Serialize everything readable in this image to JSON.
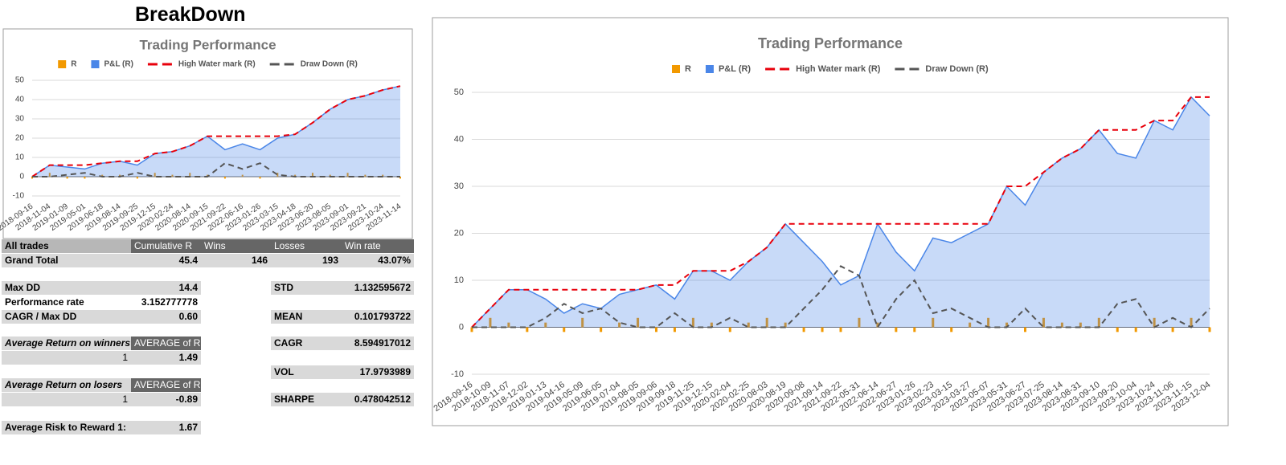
{
  "header": {
    "title": "BreakDown"
  },
  "chart_data": [
    {
      "type": "line",
      "title": "Trading Performance",
      "categories": [
        "2018-09-16",
        "2018-11-04",
        "2019-01-09",
        "2019-05-01",
        "2019-06-18",
        "2019-08-14",
        "2019-09-25",
        "2019-12-15",
        "2020-02-24",
        "2020-08-14",
        "2020-09-15",
        "2021-09-22",
        "2022-06-16",
        "2023-01-26",
        "2023-03-15",
        "2023-04-18",
        "2023-06-20",
        "2023-08-05",
        "2023-09-01",
        "2023-09-21",
        "2023-10-24",
        "2023-11-14"
      ],
      "series": [
        {
          "name": "R",
          "kind": "bar",
          "color": "#f29900",
          "values": [
            -1,
            2,
            -1,
            -1,
            1,
            1,
            -1,
            2,
            1,
            2,
            1,
            -1,
            1,
            -1,
            2,
            1,
            2,
            1,
            2,
            1,
            1,
            -1
          ]
        },
        {
          "name": "P&L (R)",
          "kind": "area",
          "color": "#4a86e8",
          "values": [
            0,
            6,
            5,
            4,
            7,
            8,
            6,
            12,
            13,
            16,
            21,
            14,
            17,
            14,
            20,
            22,
            28,
            35,
            40,
            42,
            45,
            47
          ]
        },
        {
          "name": "High Water mark (R)",
          "kind": "line",
          "dashed": true,
          "color": "#e8000b",
          "values": [
            0,
            6,
            6,
            6,
            7,
            8,
            8,
            12,
            13,
            16,
            21,
            21,
            21,
            21,
            21,
            22,
            28,
            35,
            40,
            42,
            45,
            47
          ]
        },
        {
          "name": "Draw Down (R)",
          "kind": "line",
          "dashed": true,
          "color": "#555555",
          "values": [
            0,
            0,
            1,
            2,
            0,
            0,
            2,
            0,
            0,
            0,
            0,
            7,
            4,
            7,
            1,
            0,
            0,
            0,
            0,
            0,
            0,
            0
          ]
        }
      ],
      "ylim": [
        -10,
        50
      ],
      "yticks": [
        -10,
        0,
        10,
        20,
        30,
        40,
        50
      ],
      "grid": true,
      "legend": "top"
    },
    {
      "type": "line",
      "title": "Trading Performance",
      "categories": [
        "2018-09-16",
        "2018-10-09",
        "2018-11-07",
        "2018-12-02",
        "2019-01-13",
        "2019-04-16",
        "2019-05-09",
        "2019-06-05",
        "2019-07-04",
        "2019-08-05",
        "2019-09-06",
        "2019-09-18",
        "2019-11-25",
        "2019-12-15",
        "2020-02-04",
        "2020-02-25",
        "2020-08-03",
        "2020-08-19",
        "2020-09-08",
        "2021-09-14",
        "2021-09-22",
        "2022-05-31",
        "2022-06-14",
        "2022-06-27",
        "2023-01-26",
        "2023-02-23",
        "2023-03-15",
        "2023-03-27",
        "2023-05-07",
        "2023-05-31",
        "2023-06-27",
        "2023-07-25",
        "2023-08-14",
        "2023-08-31",
        "2023-09-10",
        "2023-09-20",
        "2023-10-04",
        "2023-10-24",
        "2023-11-06",
        "2023-11-15",
        "2023-12-04"
      ],
      "series": [
        {
          "name": "R",
          "kind": "bar",
          "color": "#f29900",
          "values": [
            -1,
            2,
            1,
            -1,
            1,
            -1,
            2,
            -1,
            1,
            2,
            -1,
            -1,
            2,
            1,
            -1,
            1,
            2,
            1,
            -1,
            -1,
            -1,
            2,
            1,
            -1,
            -1,
            2,
            -1,
            1,
            2,
            1,
            -1,
            2,
            1,
            1,
            2,
            -1,
            -1,
            2,
            -1,
            2,
            -1
          ]
        },
        {
          "name": "P&L (R)",
          "kind": "area",
          "color": "#4a86e8",
          "values": [
            0,
            4,
            8,
            8,
            6,
            3,
            5,
            4,
            7,
            8,
            9,
            6,
            12,
            12,
            10,
            14,
            17,
            22,
            18,
            14,
            9,
            11,
            22,
            16,
            12,
            19,
            18,
            20,
            22,
            30,
            26,
            33,
            36,
            38,
            42,
            37,
            36,
            44,
            42,
            49,
            45
          ]
        },
        {
          "name": "High Water mark (R)",
          "kind": "line",
          "dashed": true,
          "color": "#e8000b",
          "values": [
            0,
            4,
            8,
            8,
            8,
            8,
            8,
            8,
            8,
            8,
            9,
            9,
            12,
            12,
            12,
            14,
            17,
            22,
            22,
            22,
            22,
            22,
            22,
            22,
            22,
            22,
            22,
            22,
            22,
            30,
            30,
            33,
            36,
            38,
            42,
            42,
            42,
            44,
            44,
            49,
            49
          ]
        },
        {
          "name": "Draw Down (R)",
          "kind": "line",
          "dashed": true,
          "color": "#555555",
          "values": [
            0,
            0,
            0,
            0,
            2,
            5,
            3,
            4,
            1,
            0,
            0,
            3,
            0,
            0,
            2,
            0,
            0,
            0,
            4,
            8,
            13,
            11,
            0,
            6,
            10,
            3,
            4,
            2,
            0,
            0,
            4,
            0,
            0,
            0,
            0,
            5,
            6,
            0,
            2,
            0,
            4
          ]
        }
      ],
      "ylim": [
        -10,
        50
      ],
      "yticks": [
        -10,
        0,
        10,
        20,
        30,
        40,
        50
      ],
      "grid": true,
      "legend": "top"
    }
  ],
  "table": {
    "header": [
      "All trades",
      "Cumulative R",
      "Wins",
      "Losses",
      "Win rate"
    ],
    "total": [
      "Grand Total",
      "45.4",
      "146",
      "193",
      "43.07%"
    ],
    "stats": [
      [
        "Max DD",
        "14.4"
      ],
      [
        "Performance rate",
        "3.152777778"
      ],
      [
        "CAGR / Max DD",
        "0.60"
      ],
      [
        "Average Risk to Reward 1:",
        "1.67"
      ]
    ],
    "winners": {
      "label": "Average Return on winners",
      "column": "AVERAGE of R",
      "key": "1",
      "value": "1.49"
    },
    "losers": {
      "label": "Average Return on losers",
      "column": "AVERAGE of R",
      "key": "1",
      "value": "-0.89"
    },
    "metrics": [
      [
        "STD",
        "1.132595672"
      ],
      [
        "MEAN",
        "0.101793722"
      ],
      [
        "CAGR",
        "8.594917012"
      ],
      [
        "VOL",
        "17.9793989"
      ],
      [
        "SHARPE",
        "0.478042512"
      ]
    ]
  }
}
